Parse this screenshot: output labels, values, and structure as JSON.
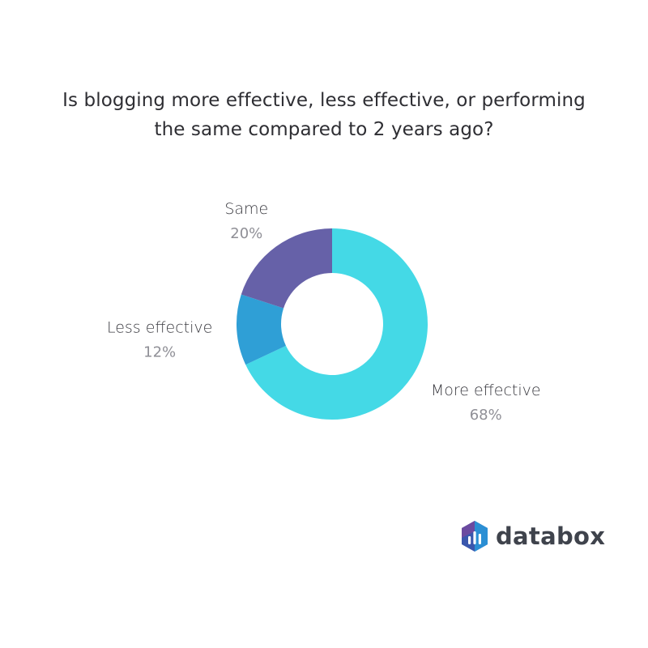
{
  "chart_data": {
    "type": "pie",
    "title": "Is blogging more effective, less effective, or performing the same compared to 2 years ago?",
    "title_lines": [
      "Is blogging more effective, less effective, or performing",
      "the same compared to 2 years ago?"
    ],
    "donut": true,
    "slices": [
      {
        "label": "More effective",
        "value": 68,
        "display": "68%",
        "color": "#44d9e6"
      },
      {
        "label": "Less effective",
        "value": 12,
        "display": "12%",
        "color": "#2f9fd6"
      },
      {
        "label": "Same",
        "value": 20,
        "display": "20%",
        "color": "#6661a8"
      }
    ],
    "start": "top",
    "direction": "clockwise"
  },
  "brand": {
    "name": "databox",
    "icon": "databox-logo-icon",
    "colors": [
      "#3b5bb0",
      "#2a8fd3",
      "#6b4aa0"
    ]
  }
}
